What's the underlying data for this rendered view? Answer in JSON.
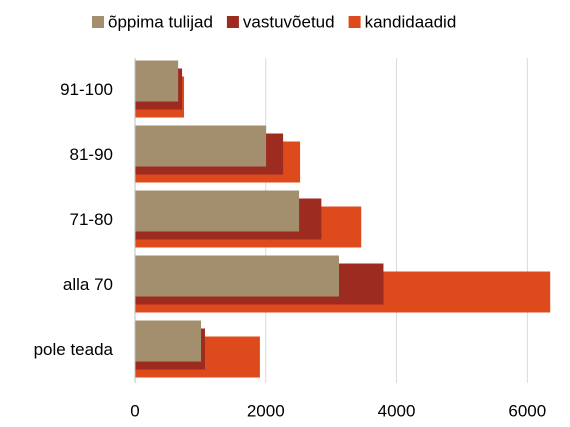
{
  "chart_data": {
    "type": "bar",
    "orientation": "horizontal",
    "categories": [
      "91-100",
      "81-90",
      "71-80",
      "alla 70",
      "pole teada"
    ],
    "series": [
      {
        "name": "õppima tulijad",
        "color": "#a38f6e",
        "values": [
          660,
          2005,
          2510,
          3120,
          1010
        ]
      },
      {
        "name": "vastuvõetud",
        "color": "#9e2b20",
        "values": [
          720,
          2265,
          2850,
          3800,
          1070
        ]
      },
      {
        "name": "kandidaadid",
        "color": "#dd4a1c",
        "values": [
          750,
          2525,
          3460,
          6350,
          1910
        ]
      }
    ],
    "xlim": [
      0,
      6500
    ],
    "xticks": [
      0,
      2000,
      4000,
      6000
    ],
    "grid": true,
    "legend": "top"
  }
}
